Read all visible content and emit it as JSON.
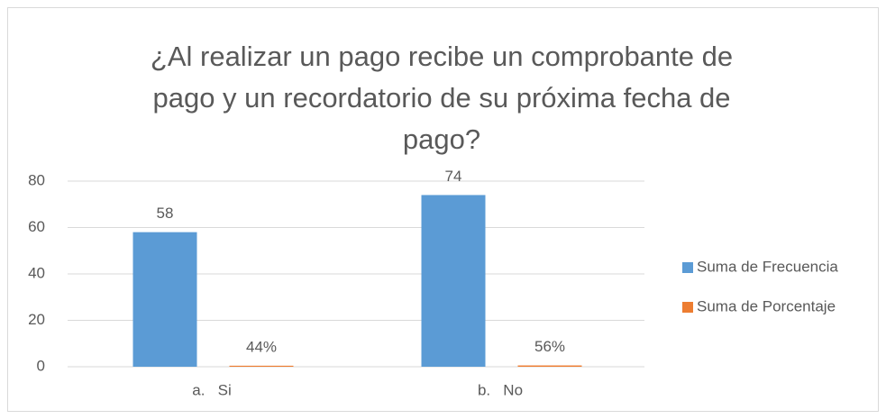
{
  "chart_data": {
    "type": "bar",
    "title": "¿Al realizar un pago recibe un comprobante de pago y un recordatorio de su próxima fecha de pago?",
    "categories": [
      "a.   Si",
      "b.   No"
    ],
    "series": [
      {
        "name": "Suma de Frecuencia",
        "color": "#5b9bd5",
        "values": [
          58,
          74
        ]
      },
      {
        "name": "Suma de Porcentaje",
        "color": "#ed7d31",
        "values": [
          0.44,
          0.56
        ],
        "value_labels": [
          "44%",
          "56%"
        ]
      }
    ],
    "ylim": [
      0,
      80
    ],
    "yticks": [
      0,
      20,
      40,
      60,
      80
    ],
    "grid": true,
    "legend": "right"
  }
}
